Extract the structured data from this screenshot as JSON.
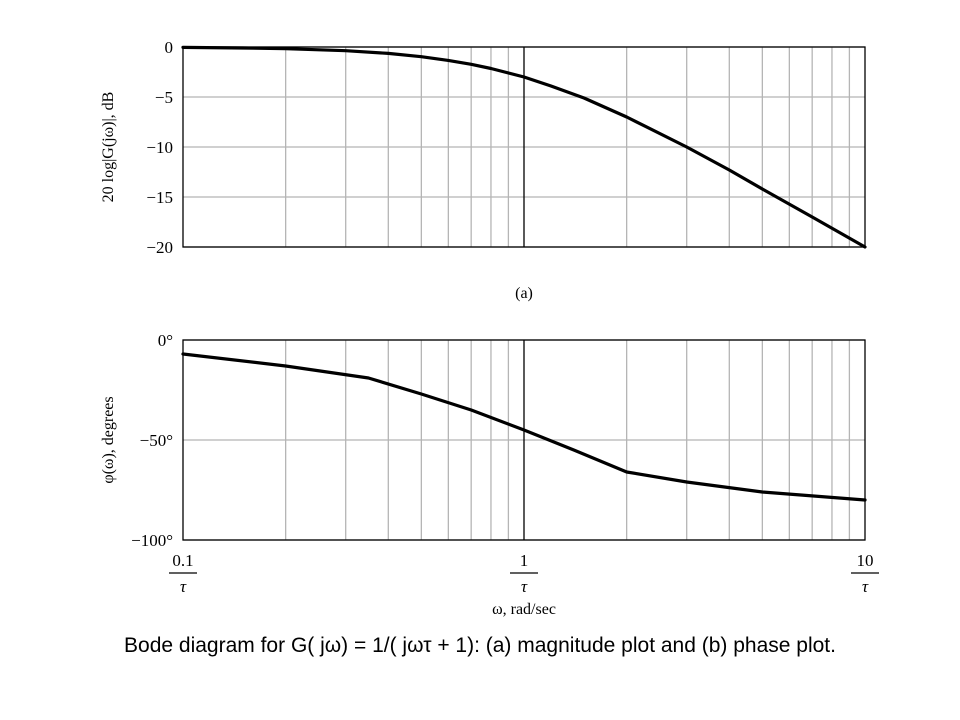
{
  "chart_data": [
    {
      "type": "line",
      "panel_label": "(a)",
      "ylabel": "20 log|G(jω)|, dB",
      "x_scale": "log",
      "xlim": [
        0.1,
        10
      ],
      "ylim": [
        -20,
        0
      ],
      "y_ticks": [
        0,
        -5,
        -10,
        -15,
        -20
      ],
      "y_tick_labels": [
        "0",
        "−5",
        "−10",
        "−15",
        "−20"
      ],
      "grid": true,
      "series": [
        {
          "x": [
            0.1,
            0.15,
            0.2,
            0.3,
            0.4,
            0.5,
            0.6,
            0.7,
            0.8,
            1.0,
            1.2,
            1.5,
            2.0,
            3.0,
            4.0,
            5.0,
            7.0,
            10.0
          ],
          "values": [
            -0.04,
            -0.1,
            -0.17,
            -0.37,
            -0.64,
            -0.97,
            -1.34,
            -1.73,
            -2.15,
            -3.0,
            -3.9,
            -5.1,
            -7.0,
            -10.0,
            -12.3,
            -14.2,
            -17.0,
            -20.0
          ]
        }
      ]
    },
    {
      "type": "line",
      "ylabel": "φ(ω), degrees",
      "xlabel": "ω, rad/sec",
      "x_scale": "log",
      "xlim": [
        0.1,
        10
      ],
      "ylim": [
        -100,
        0
      ],
      "y_ticks": [
        0,
        -50,
        -100
      ],
      "y_tick_labels": [
        "0°",
        "−50°",
        "−100°"
      ],
      "x_ticks": [
        0.1,
        1,
        10
      ],
      "x_tick_labels": [
        {
          "num": "0.1",
          "den": "τ"
        },
        {
          "num": "1",
          "den": "τ"
        },
        {
          "num": "10",
          "den": "τ"
        }
      ],
      "grid": true,
      "series": [
        {
          "x": [
            0.1,
            0.2,
            0.35,
            0.5,
            0.7,
            1.0,
            1.4,
            2.0,
            3.0,
            5.0,
            10.0
          ],
          "values": [
            -7,
            -13,
            -19,
            -27,
            -35,
            -45,
            -55,
            -66,
            -71,
            -76,
            -80
          ]
        }
      ]
    }
  ],
  "caption": "Bode diagram for G( jω) = 1/( jωτ + 1): (a) magnitude plot and (b) phase plot."
}
